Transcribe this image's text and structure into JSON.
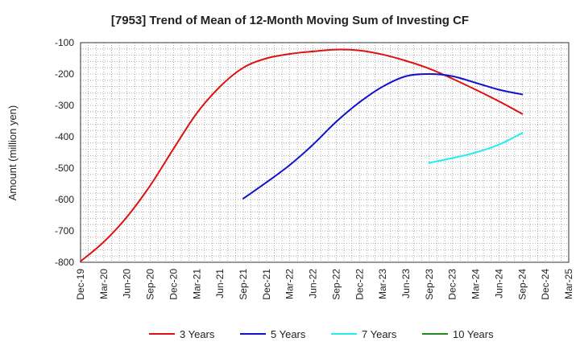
{
  "chart_data": {
    "type": "line",
    "title": "[7953]  Trend of Mean of 12-Month Moving Sum of Investing CF",
    "xlabel": "",
    "ylabel": "Amount (million yen)",
    "ylim": [
      -800,
      -100
    ],
    "yticks": [
      -100,
      -200,
      -300,
      -400,
      -500,
      -600,
      -700,
      -800
    ],
    "x_tick_labels": [
      "Dec-19",
      "Mar-20",
      "Jun-20",
      "Sep-20",
      "Dec-20",
      "Mar-21",
      "Jun-21",
      "Sep-21",
      "Dec-21",
      "Mar-22",
      "Jun-22",
      "Sep-22",
      "Dec-22",
      "Mar-23",
      "Jun-23",
      "Sep-23",
      "Dec-23",
      "Mar-24",
      "Jun-24",
      "Sep-24",
      "Dec-24",
      "Mar-25"
    ],
    "grid": true,
    "legend_position": "bottom",
    "series": [
      {
        "name": "3 Years",
        "color": "#dd1111",
        "x": [
          "Dec-19",
          "Mar-20",
          "Jun-20",
          "Sep-20",
          "Dec-20",
          "Mar-21",
          "Jun-21",
          "Sep-21",
          "Dec-21",
          "Mar-22",
          "Jun-22",
          "Sep-22",
          "Dec-22",
          "Mar-23",
          "Jun-23",
          "Sep-23",
          "Dec-23",
          "Mar-24",
          "Jun-24",
          "Sep-24"
        ],
        "values": [
          -797,
          -735,
          -655,
          -555,
          -438,
          -325,
          -240,
          -180,
          -150,
          -136,
          -128,
          -122,
          -125,
          -138,
          -158,
          -183,
          -215,
          -250,
          -287,
          -327
        ]
      },
      {
        "name": "5 Years",
        "color": "#1111cc",
        "x": [
          "Sep-21",
          "Dec-21",
          "Mar-22",
          "Jun-22",
          "Sep-22",
          "Dec-22",
          "Mar-23",
          "Jun-23",
          "Sep-23",
          "Dec-23",
          "Mar-24",
          "Jun-24",
          "Sep-24"
        ],
        "values": [
          -597,
          -545,
          -490,
          -425,
          -352,
          -290,
          -240,
          -207,
          -200,
          -207,
          -228,
          -250,
          -265
        ]
      },
      {
        "name": "7 Years",
        "color": "#22eeee",
        "x": [
          "Sep-23",
          "Dec-23",
          "Mar-24",
          "Jun-24",
          "Sep-24"
        ],
        "values": [
          -483,
          -468,
          -450,
          -425,
          -388
        ]
      },
      {
        "name": "10 Years",
        "color": "#228822",
        "x": [],
        "values": []
      }
    ]
  }
}
